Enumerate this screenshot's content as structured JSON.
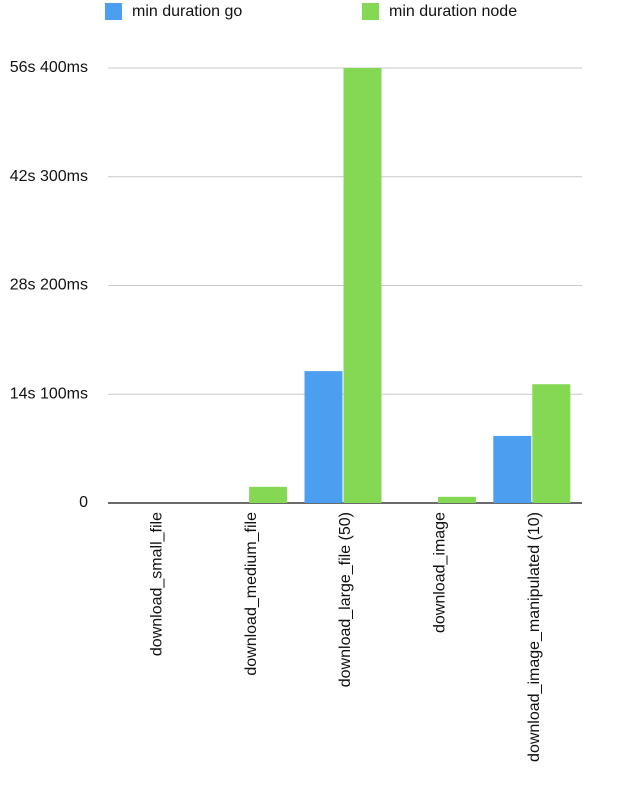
{
  "chart_data": {
    "type": "bar",
    "categories": [
      "download_small_file",
      "download_medium_file",
      "download_large_file (50)",
      "download_image",
      "download_image_manipulated (10)"
    ],
    "series": [
      {
        "name": "min duration go",
        "color": "#4c9ff0",
        "values": [
          0,
          0,
          17100,
          0,
          8700
        ]
      },
      {
        "name": "min duration node",
        "color": "#84d854",
        "values": [
          0,
          2100,
          56400,
          800,
          15400
        ]
      }
    ],
    "ylim": [
      0,
      56400
    ],
    "yticks": [
      0,
      {
        "value": 14100,
        "label": "14s 100ms"
      },
      {
        "value": 28200,
        "label": "28s 200ms"
      },
      {
        "value": 42300,
        "label": "42s 300ms"
      },
      {
        "value": 56400,
        "label": "56s 400ms"
      }
    ],
    "grid": true
  }
}
